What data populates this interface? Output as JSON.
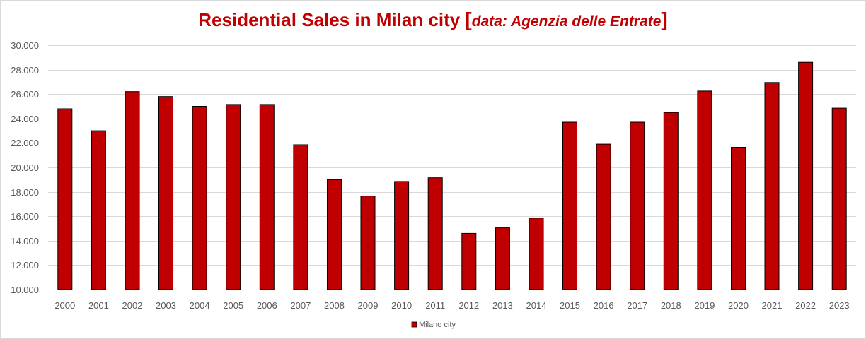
{
  "chart_data": {
    "type": "bar",
    "title": "Residential Sales in Milan city",
    "title_source_open": "[",
    "title_source": "data: Agenzia delle Entrate",
    "title_source_close": "]",
    "categories": [
      "2000",
      "2001",
      "2002",
      "2003",
      "2004",
      "2005",
      "2006",
      "2007",
      "2008",
      "2009",
      "2010",
      "2011",
      "2012",
      "2013",
      "2014",
      "2015",
      "2016",
      "2017",
      "2018",
      "2019",
      "2020",
      "2021",
      "2022",
      "2023"
    ],
    "series": [
      {
        "name": "Milano city",
        "color": "#c00000",
        "values": [
          24800,
          23000,
          26200,
          25800,
          25000,
          25150,
          25150,
          21850,
          19000,
          17650,
          18850,
          19150,
          14600,
          15050,
          15850,
          23700,
          21900,
          23700,
          24500,
          26250,
          21650,
          26950,
          28600,
          24850
        ]
      }
    ],
    "ylim": [
      10000,
      30000
    ],
    "yticks": [
      10000,
      12000,
      14000,
      16000,
      18000,
      20000,
      22000,
      24000,
      26000,
      28000,
      30000
    ],
    "ytick_labels": [
      "10.000",
      "12.000",
      "14.000",
      "16.000",
      "18.000",
      "20.000",
      "22.000",
      "24.000",
      "26.000",
      "28.000",
      "30.000"
    ],
    "grid": true,
    "legend": "bottom-center",
    "xlabel": "",
    "ylabel": ""
  }
}
